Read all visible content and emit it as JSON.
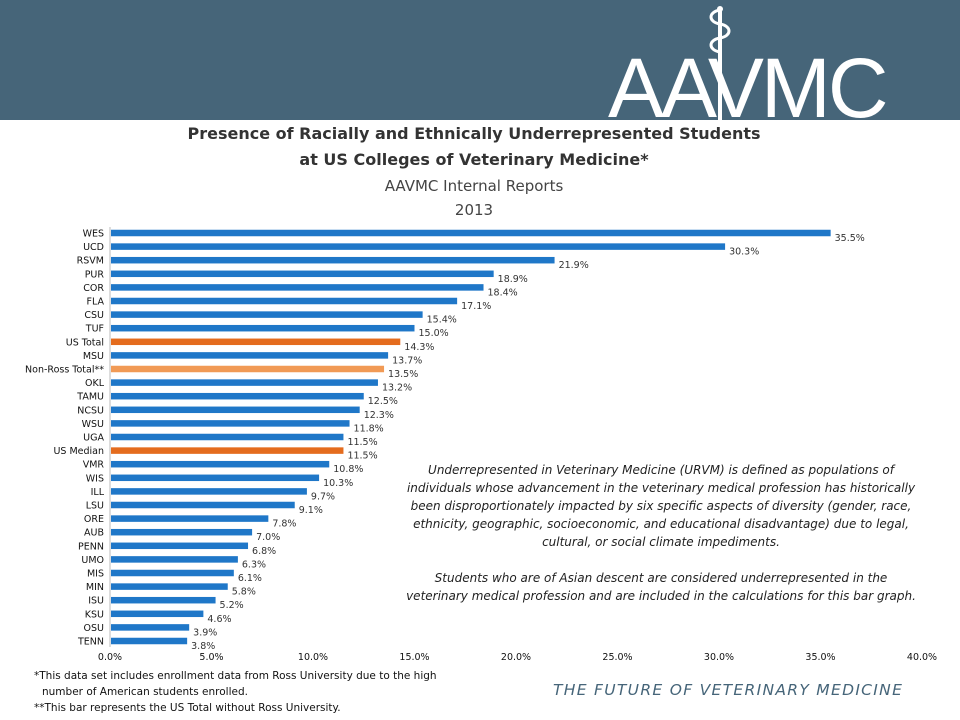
{
  "header": {
    "logo_text": "AAVMC",
    "tagline": "THE FUTURE OF VETERINARY MEDICINE"
  },
  "titles": {
    "line1": "Presence of Racially and Ethnically Underrepresented Students",
    "line2": "at US Colleges of Veterinary Medicine*",
    "line3": "AAVMC Internal Reports",
    "line4": "2013"
  },
  "colors": {
    "banner": "#466579",
    "bar_default": "#1f77c8",
    "bar_us": "#e46c1e",
    "bar_nonross": "#f19a55"
  },
  "chart_data": {
    "type": "bar",
    "orientation": "horizontal",
    "categories": [
      "WES",
      "UCD",
      "RSVM",
      "PUR",
      "COR",
      "FLA",
      "CSU",
      "TUF",
      "US Total",
      "MSU",
      "Non-Ross Total**",
      "OKL",
      "TAMU",
      "NCSU",
      "WSU",
      "UGA",
      "US Median",
      "VMR",
      "WIS",
      "ILL",
      "LSU",
      "ORE",
      "AUB",
      "PENN",
      "UMO",
      "MIS",
      "MIN",
      "ISU",
      "KSU",
      "OSU",
      "TENN"
    ],
    "values": [
      35.5,
      30.3,
      21.9,
      18.9,
      18.4,
      17.1,
      15.4,
      15.0,
      14.3,
      13.7,
      13.5,
      13.2,
      12.5,
      12.3,
      11.8,
      11.5,
      11.5,
      10.8,
      10.3,
      9.7,
      9.1,
      7.8,
      7.0,
      6.8,
      6.3,
      6.1,
      5.8,
      5.2,
      4.6,
      3.9,
      3.8
    ],
    "value_labels": [
      "35.5%",
      "30.3%",
      "21.9%",
      "18.9%",
      "18.4%",
      "17.1%",
      "15.4%",
      "15.0%",
      "14.3%",
      "13.7%",
      "13.5%",
      "13.2%",
      "12.5%",
      "12.3%",
      "11.8%",
      "11.5%",
      "11.5%",
      "10.8%",
      "10.3%",
      "9.7%",
      "9.1%",
      "7.8%",
      "7.0%",
      "6.8%",
      "6.3%",
      "6.1%",
      "5.8%",
      "5.2%",
      "4.6%",
      "3.9%",
      "3.8%"
    ],
    "highlight": {
      "US Total": "bar_us",
      "US Median": "bar_us",
      "Non-Ross Total**": "bar_nonross"
    },
    "xlim": [
      0,
      40
    ],
    "xticks": [
      "0.0%",
      "5.0%",
      "10.0%",
      "15.0%",
      "20.0%",
      "25.0%",
      "30.0%",
      "35.0%",
      "40.0%"
    ],
    "grid": false,
    "legend": "none"
  },
  "note": {
    "p1": "Underrepresented in Veterinary Medicine (URVM) is defined as populations of individuals whose advancement in the veterinary medical profession has historically been disproportionately impacted by six specific aspects of diversity (gender, race, ethnicity, geographic, socioeconomic, and educational disadvantage) due to legal, cultural, or social climate impediments.",
    "p2": "Students who are of Asian descent are considered underrepresented in the veterinary medical profession and are included in the calculations for this bar graph."
  },
  "footnotes": {
    "fn1a": "*This data set includes enrollment data from Ross University  due to the high",
    "fn1b": "number of American students enrolled.",
    "fn2": "**This bar represents the US Total without Ross University."
  }
}
